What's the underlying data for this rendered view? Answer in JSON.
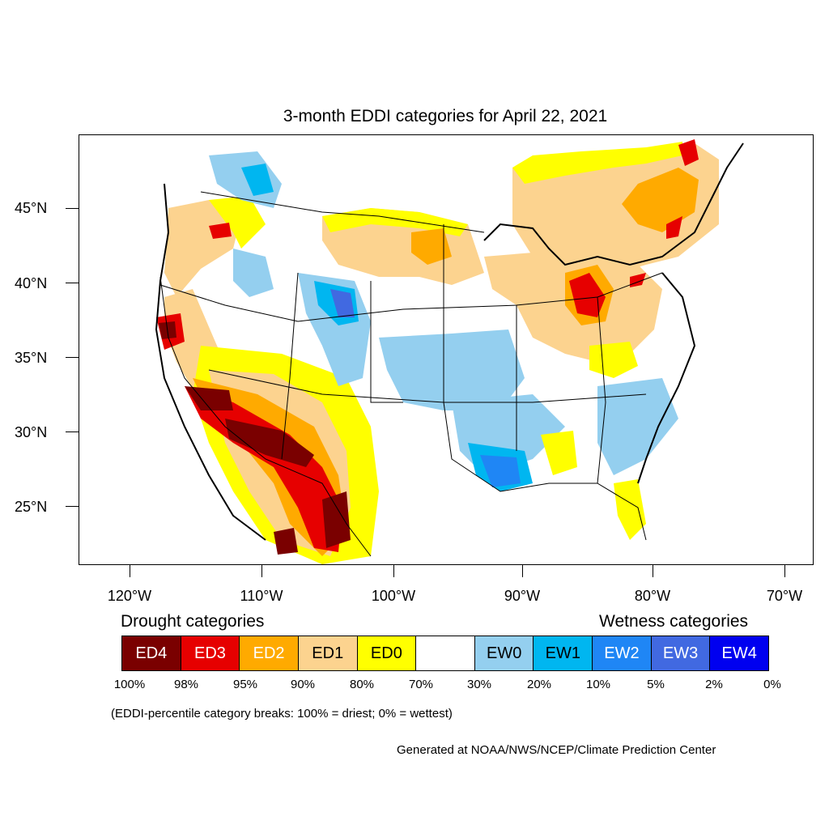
{
  "title": "3-month EDDI categories for April 22, 2021",
  "map": {
    "lat_labels": [
      "45°N",
      "40°N",
      "35°N",
      "30°N",
      "25°N"
    ],
    "lon_labels": [
      "120°W",
      "110°W",
      "100°W",
      "90°W",
      "80°W",
      "70°W"
    ]
  },
  "legend": {
    "drought_heading": "Drought categories",
    "wetness_heading": "Wetness categories",
    "categories": [
      {
        "label": "ED4",
        "color": "#7a0000",
        "text_color": "#ffffff"
      },
      {
        "label": "ED3",
        "color": "#e60000",
        "text_color": "#ffffff"
      },
      {
        "label": "ED2",
        "color": "#ffaa00",
        "text_color": "#ffffff"
      },
      {
        "label": "ED1",
        "color": "#fcd38f",
        "text_color": "#000000"
      },
      {
        "label": "ED0",
        "color": "#ffff00",
        "text_color": "#000000"
      },
      {
        "label": "",
        "color": "#ffffff",
        "text_color": "#000000"
      },
      {
        "label": "EW0",
        "color": "#94cfef",
        "text_color": "#000000"
      },
      {
        "label": "EW1",
        "color": "#00b6f0",
        "text_color": "#000000"
      },
      {
        "label": "EW2",
        "color": "#1f86f5",
        "text_color": "#ffffff"
      },
      {
        "label": "EW3",
        "color": "#4169e1",
        "text_color": "#ffffff"
      },
      {
        "label": "EW4",
        "color": "#0000f0",
        "text_color": "#ffffff"
      }
    ],
    "breaks": [
      "100%",
      "98%",
      "95%",
      "90%",
      "80%",
      "70%",
      "30%",
      "20%",
      "10%",
      "5%",
      "2%",
      "0%"
    ]
  },
  "note": "(EDDI-percentile category breaks: 100% = driest; 0% = wettest)",
  "credit": "Generated at NOAA/NWS/NCEP/Climate Prediction Center"
}
